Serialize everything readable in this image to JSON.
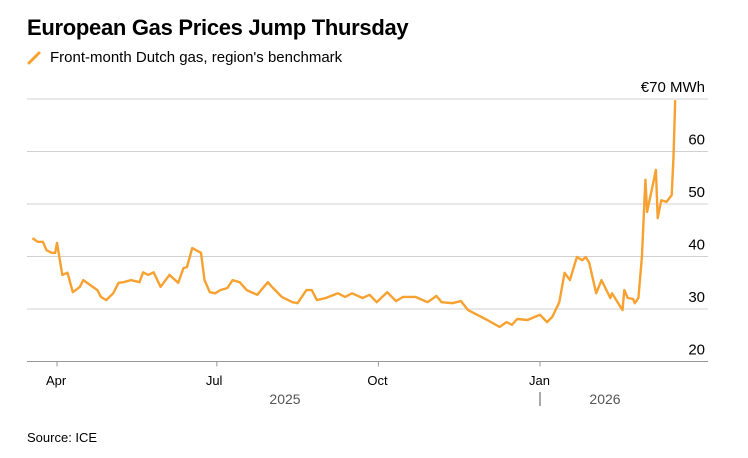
{
  "title": "European Gas Prices Jump Thursday",
  "legend": {
    "label": "Front-month Dutch gas, region's benchmark",
    "color": "#f7a130"
  },
  "source": "Source: ICE",
  "chart_data": {
    "type": "line",
    "title": "European Gas Prices Jump Thursday",
    "ylabel": "",
    "xlabel": "",
    "y_unit_label": "€70 MWh",
    "ylim": [
      20,
      70
    ],
    "y_ticks": [
      20,
      30,
      40,
      50,
      60
    ],
    "y_tick_labels": [
      "20",
      "30",
      "40",
      "50",
      "60"
    ],
    "x_ticks": [
      {
        "date": "2025-04-01",
        "label": "Apr"
      },
      {
        "date": "2025-07-01",
        "label": "Jul"
      },
      {
        "date": "2025-10-01",
        "label": "Oct"
      },
      {
        "date": "2026-01-01",
        "label": "Jan"
      }
    ],
    "year_labels": [
      {
        "label": "2025"
      },
      {
        "label": "2026"
      }
    ],
    "grid": true,
    "legend_position": "top-left",
    "series": [
      {
        "name": "Front-month Dutch gas, region's benchmark",
        "color": "#f7a130",
        "points": [
          [
            "2025-03-18",
            43.5
          ],
          [
            "2025-03-21",
            42.8
          ],
          [
            "2025-03-24",
            42.8
          ],
          [
            "2025-03-26",
            41.2
          ],
          [
            "2025-03-29",
            40.7
          ],
          [
            "2025-03-31",
            40.7
          ],
          [
            "2025-04-01",
            42.6
          ],
          [
            "2025-04-04",
            36.5
          ],
          [
            "2025-04-07",
            36.9
          ],
          [
            "2025-04-10",
            33.2
          ],
          [
            "2025-04-14",
            34.2
          ],
          [
            "2025-04-16",
            35.5
          ],
          [
            "2025-04-24",
            33.6
          ],
          [
            "2025-04-26",
            32.3
          ],
          [
            "2025-04-29",
            31.7
          ],
          [
            "2025-05-03",
            33.0
          ],
          [
            "2025-05-06",
            35.0
          ],
          [
            "2025-05-09",
            35.1
          ],
          [
            "2025-05-13",
            35.5
          ],
          [
            "2025-05-18",
            35.1
          ],
          [
            "2025-05-20",
            37.0
          ],
          [
            "2025-05-23",
            36.5
          ],
          [
            "2025-05-26",
            37.0
          ],
          [
            "2025-05-30",
            34.2
          ],
          [
            "2025-06-04",
            36.5
          ],
          [
            "2025-06-09",
            35.0
          ],
          [
            "2025-06-12",
            37.8
          ],
          [
            "2025-06-14",
            38.0
          ],
          [
            "2025-06-17",
            41.6
          ],
          [
            "2025-06-22",
            40.7
          ],
          [
            "2025-06-24",
            35.5
          ],
          [
            "2025-06-27",
            33.2
          ],
          [
            "2025-06-30",
            33.0
          ],
          [
            "2025-07-03",
            33.6
          ],
          [
            "2025-07-07",
            34.0
          ],
          [
            "2025-07-10",
            35.5
          ],
          [
            "2025-07-14",
            35.1
          ],
          [
            "2025-07-18",
            33.6
          ],
          [
            "2025-07-24",
            32.7
          ],
          [
            "2025-07-30",
            35.1
          ],
          [
            "2025-08-02",
            34.0
          ],
          [
            "2025-08-07",
            32.3
          ],
          [
            "2025-08-13",
            31.3
          ],
          [
            "2025-08-16",
            31.1
          ],
          [
            "2025-08-21",
            33.6
          ],
          [
            "2025-08-24",
            33.6
          ],
          [
            "2025-08-27",
            31.7
          ],
          [
            "2025-09-01",
            32.1
          ],
          [
            "2025-09-08",
            33.0
          ],
          [
            "2025-09-12",
            32.3
          ],
          [
            "2025-09-16",
            33.0
          ],
          [
            "2025-09-22",
            32.1
          ],
          [
            "2025-09-26",
            32.7
          ],
          [
            "2025-09-30",
            31.3
          ],
          [
            "2025-10-06",
            33.2
          ],
          [
            "2025-10-11",
            31.5
          ],
          [
            "2025-10-15",
            32.3
          ],
          [
            "2025-10-22",
            32.3
          ],
          [
            "2025-10-29",
            31.3
          ],
          [
            "2025-11-03",
            32.5
          ],
          [
            "2025-11-06",
            31.3
          ],
          [
            "2025-11-12",
            31.1
          ],
          [
            "2025-11-17",
            31.5
          ],
          [
            "2025-11-21",
            29.8
          ],
          [
            "2025-12-02",
            27.9
          ],
          [
            "2025-12-09",
            26.6
          ],
          [
            "2025-12-13",
            27.5
          ],
          [
            "2025-12-16",
            27.0
          ],
          [
            "2025-12-19",
            28.1
          ],
          [
            "2025-12-25",
            27.9
          ],
          [
            "2025-12-29",
            28.5
          ],
          [
            "2026-01-01",
            28.9
          ],
          [
            "2026-01-05",
            27.5
          ],
          [
            "2026-01-08",
            28.5
          ],
          [
            "2026-01-12",
            31.3
          ],
          [
            "2026-01-15",
            36.9
          ],
          [
            "2026-01-18",
            35.5
          ],
          [
            "2026-01-21",
            38.8
          ],
          [
            "2026-01-22",
            39.9
          ],
          [
            "2026-01-25",
            39.3
          ],
          [
            "2026-01-27",
            39.9
          ],
          [
            "2026-01-29",
            38.8
          ],
          [
            "2026-02-02",
            33.0
          ],
          [
            "2026-02-05",
            35.5
          ],
          [
            "2026-02-10",
            32.1
          ],
          [
            "2026-02-11",
            33.0
          ],
          [
            "2026-02-17",
            29.8
          ],
          [
            "2026-02-18",
            33.6
          ],
          [
            "2026-02-20",
            32.1
          ],
          [
            "2026-02-23",
            31.9
          ],
          [
            "2026-02-24",
            31.1
          ],
          [
            "2026-02-26",
            32.1
          ],
          [
            "2026-02-28",
            39.9
          ],
          [
            "2026-03-02",
            54.6
          ],
          [
            "2026-03-03",
            48.5
          ],
          [
            "2026-03-06",
            53.3
          ],
          [
            "2026-03-08",
            56.5
          ],
          [
            "2026-03-09",
            47.3
          ],
          [
            "2026-03-11",
            50.7
          ],
          [
            "2026-03-14",
            50.4
          ],
          [
            "2026-03-17",
            51.7
          ],
          [
            "2026-03-18",
            59.0
          ],
          [
            "2026-03-19",
            69.8
          ]
        ]
      }
    ]
  }
}
